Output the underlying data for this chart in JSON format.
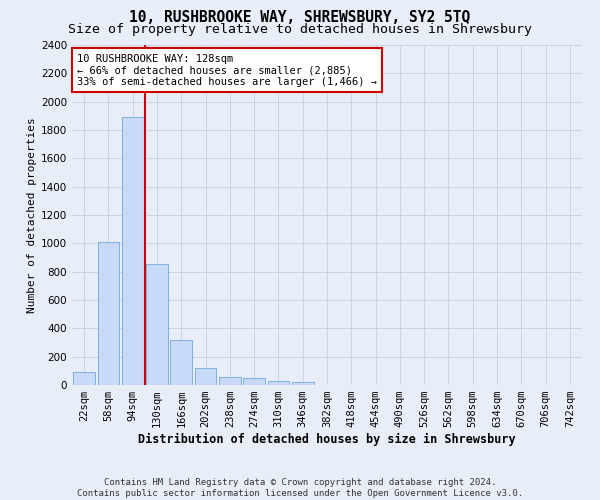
{
  "title": "10, RUSHBROOKE WAY, SHREWSBURY, SY2 5TQ",
  "subtitle": "Size of property relative to detached houses in Shrewsbury",
  "xlabel": "Distribution of detached houses by size in Shrewsbury",
  "ylabel": "Number of detached properties",
  "bar_labels": [
    "22sqm",
    "58sqm",
    "94sqm",
    "130sqm",
    "166sqm",
    "202sqm",
    "238sqm",
    "274sqm",
    "310sqm",
    "346sqm",
    "382sqm",
    "418sqm",
    "454sqm",
    "490sqm",
    "526sqm",
    "562sqm",
    "598sqm",
    "634sqm",
    "670sqm",
    "706sqm",
    "742sqm"
  ],
  "bar_values": [
    95,
    1010,
    1890,
    855,
    315,
    120,
    58,
    50,
    30,
    20,
    0,
    0,
    0,
    0,
    0,
    0,
    0,
    0,
    0,
    0,
    0
  ],
  "bar_color": "#c9daf8",
  "bar_edge_color": "#6fa8dc",
  "property_line_label": "10 RUSHBROOKE WAY: 128sqm",
  "annotation_line1": "← 66% of detached houses are smaller (2,885)",
  "annotation_line2": "33% of semi-detached houses are larger (1,466) →",
  "annotation_box_color": "#ffffff",
  "annotation_box_edge_color": "#cc0000",
  "vline_color": "#cc0000",
  "ylim": [
    0,
    2400
  ],
  "yticks": [
    0,
    200,
    400,
    600,
    800,
    1000,
    1200,
    1400,
    1600,
    1800,
    2000,
    2200,
    2400
  ],
  "grid_color": "#c8d4e8",
  "background_color": "#e8eef8",
  "plot_bg_color": "#e8eef8",
  "footer_line1": "Contains HM Land Registry data © Crown copyright and database right 2024.",
  "footer_line2": "Contains public sector information licensed under the Open Government Licence v3.0.",
  "title_fontsize": 10.5,
  "subtitle_fontsize": 9.5,
  "axis_label_fontsize": 8.5,
  "ylabel_fontsize": 8,
  "tick_fontsize": 7.5,
  "annotation_fontsize": 7.5,
  "footer_fontsize": 6.5,
  "vline_x_bar_index": 2.5
}
